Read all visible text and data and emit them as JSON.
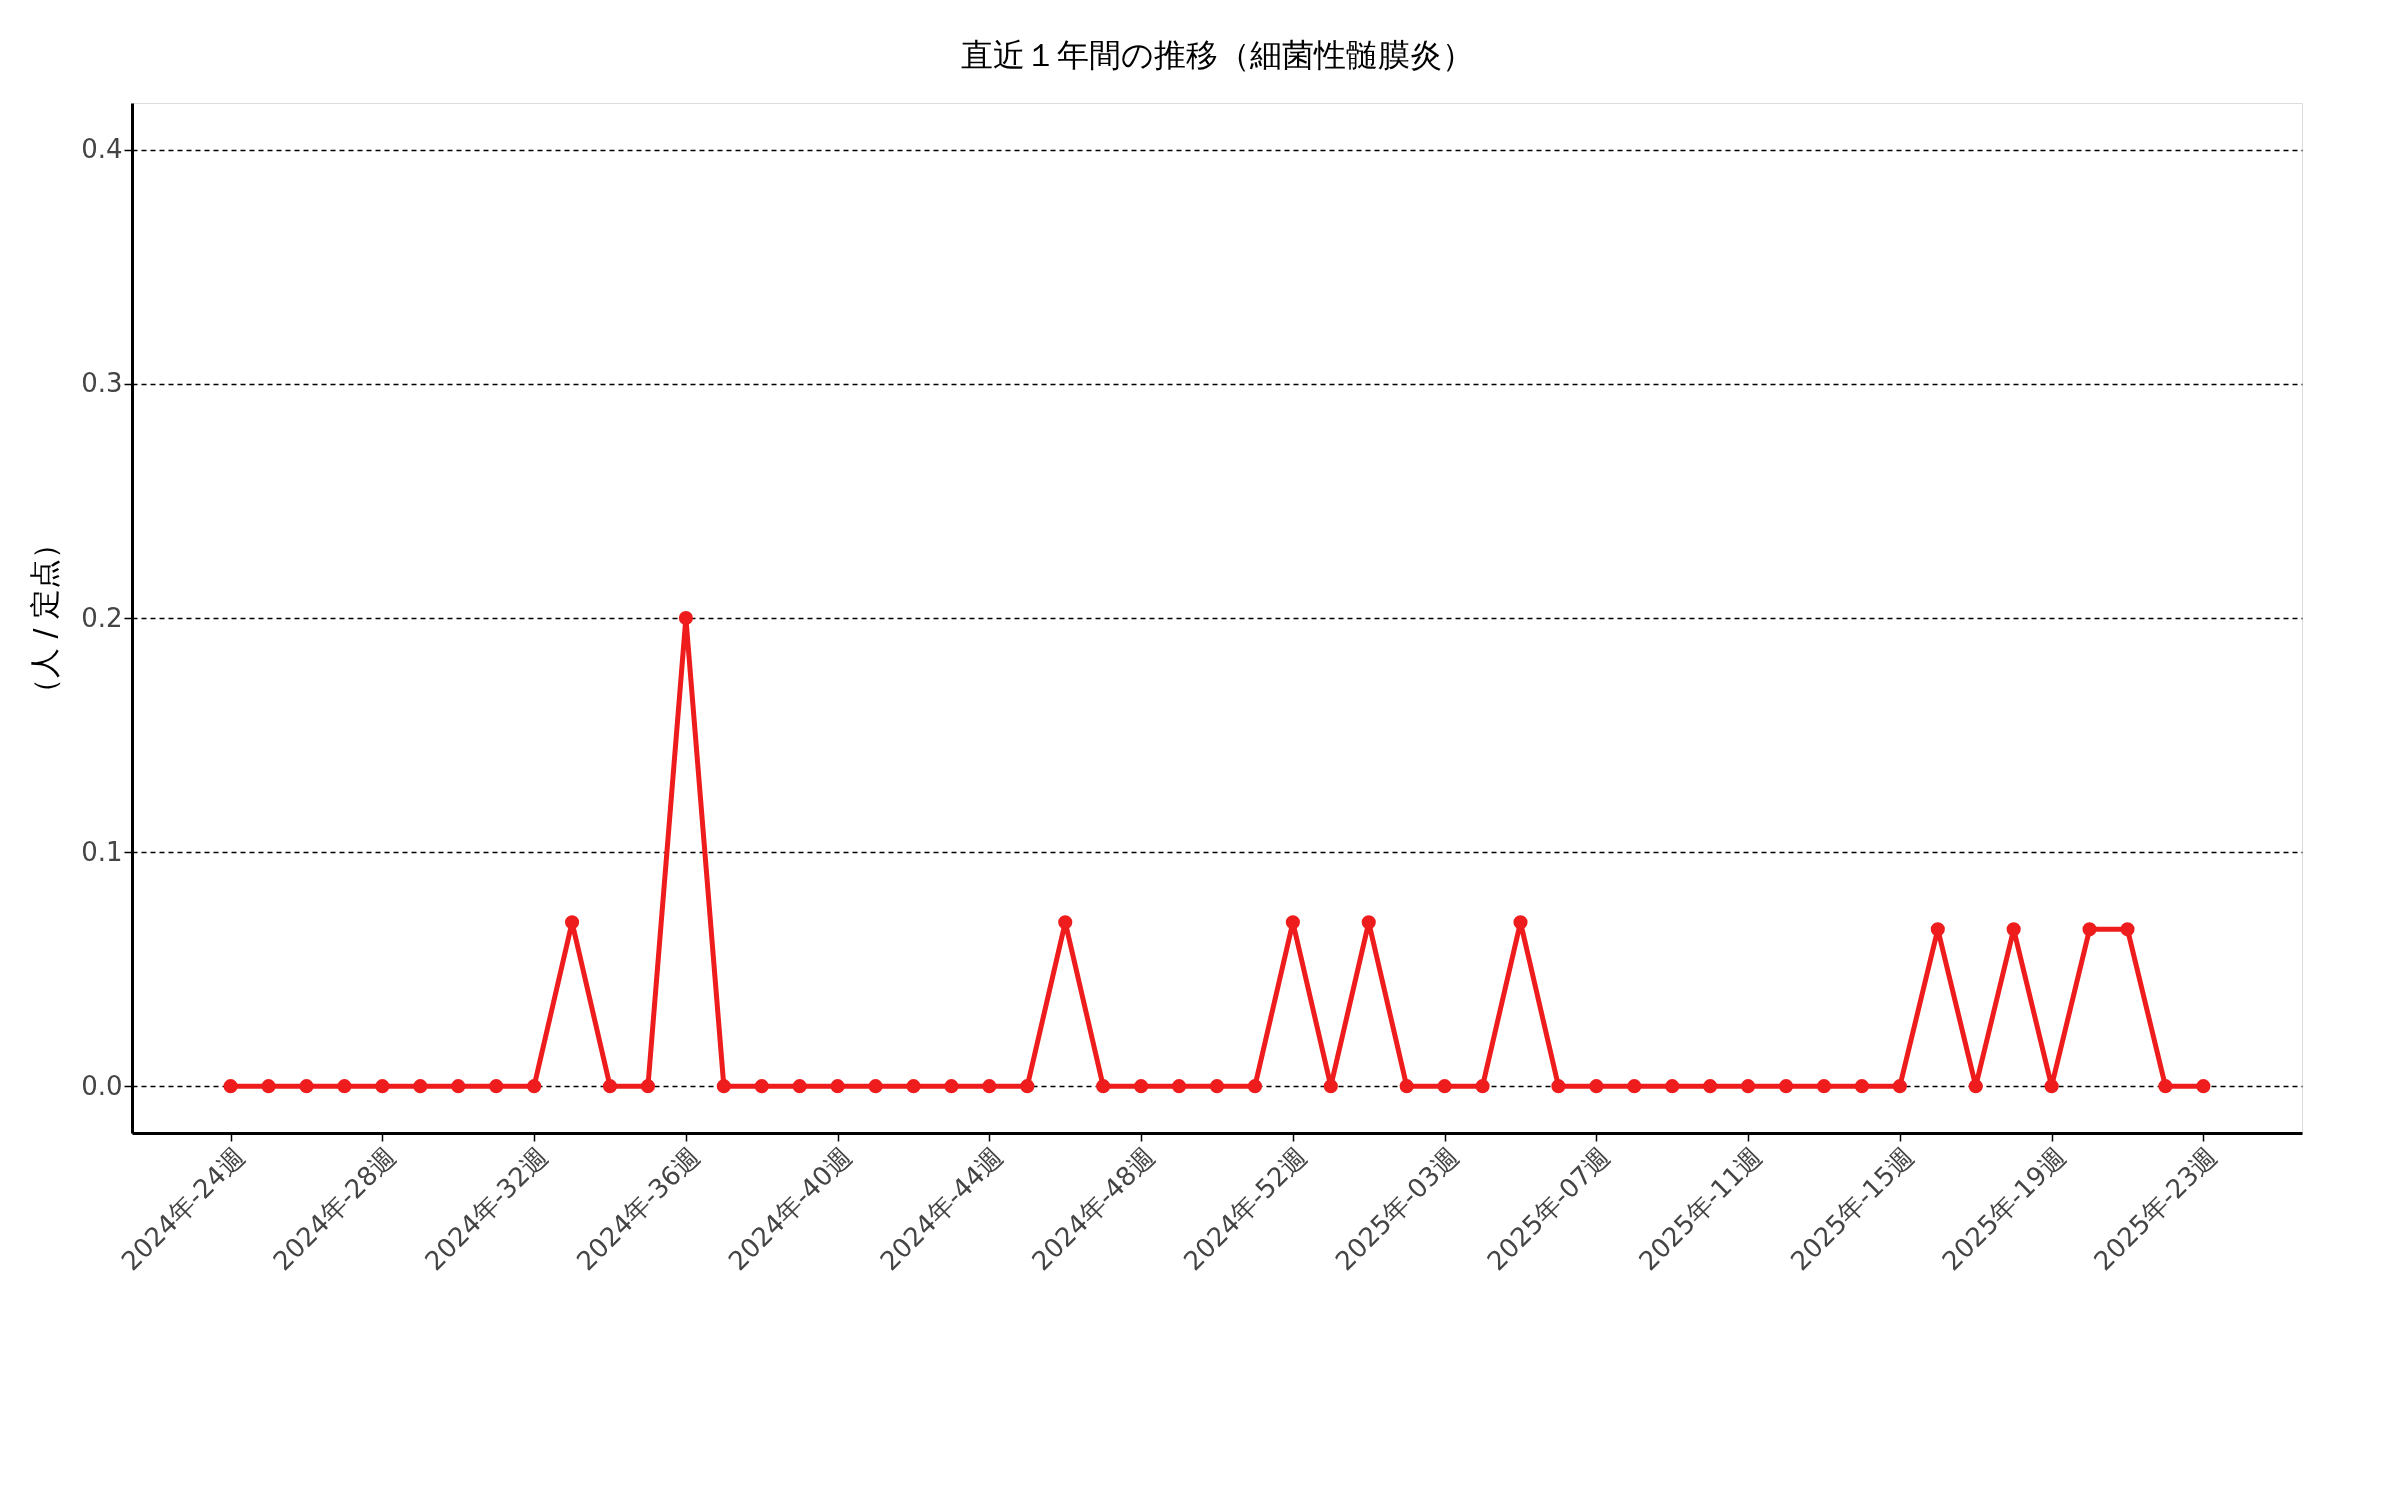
{
  "chart_data": {
    "type": "line",
    "title": "直近１年間の推移（細菌性髄膜炎）",
    "ylabel": "（人 / 定点）",
    "categories": [
      "2024年-24週",
      null,
      null,
      null,
      "2024年-28週",
      null,
      null,
      null,
      "2024年-32週",
      null,
      null,
      null,
      "2024年-36週",
      null,
      null,
      null,
      "2024年-40週",
      null,
      null,
      null,
      "2024年-44週",
      null,
      null,
      null,
      "2024年-48週",
      null,
      null,
      null,
      "2024年-52週",
      null,
      null,
      null,
      "2025年-03週",
      null,
      null,
      null,
      "2025年-07週",
      null,
      null,
      null,
      "2025年-11週",
      null,
      null,
      null,
      "2025年-15週",
      null,
      null,
      null,
      "2025年-19週",
      null,
      null,
      null,
      "2025年-23週"
    ],
    "series": [
      {
        "color": "#ee1c1c",
        "values": [
          0,
          0,
          0,
          0,
          0,
          0,
          0,
          0,
          0,
          0.07,
          0,
          0,
          0.2,
          0,
          0,
          0,
          0,
          0,
          0,
          0,
          0,
          0,
          0.07,
          0,
          0,
          0,
          0,
          0,
          0.07,
          0,
          0.07,
          0,
          0,
          0,
          0.07,
          0,
          0,
          0,
          0,
          0,
          0,
          0,
          0,
          0,
          0,
          0.067,
          0,
          0.067,
          0,
          0.067,
          0.067,
          0,
          0
        ]
      }
    ],
    "ylim": [
      -0.02,
      0.42
    ],
    "yticks": [
      {
        "value": 0,
        "label": "0.0"
      },
      {
        "value": 0.1,
        "label": "0.1"
      },
      {
        "value": 0.2,
        "label": "0.2"
      },
      {
        "value": 0.3,
        "label": "0.3"
      },
      {
        "value": 0.4,
        "label": "0.4"
      }
    ],
    "grid": "y",
    "marker": "circle",
    "line_style": "solid",
    "legend": false
  }
}
